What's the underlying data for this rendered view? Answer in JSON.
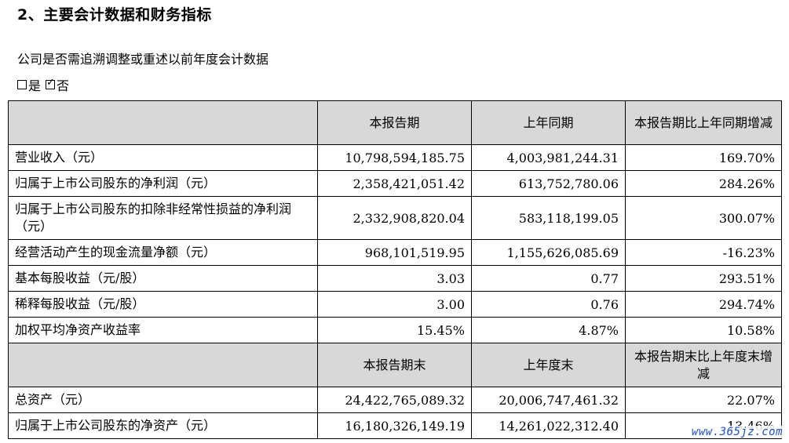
{
  "heading": "2、主要会计数据和财务指标",
  "question": "公司是否需追溯调整或重述以前年度会计数据",
  "options": {
    "yes": "是",
    "no": "否",
    "selected": "否"
  },
  "table": {
    "header1": [
      "本报告期",
      "上年同期",
      "本报告期比上年同期增减"
    ],
    "rows1": [
      {
        "label": "营业收入（元）",
        "current": "10,798,594,185.75",
        "previous": "4,003,981,244.31",
        "change": "169.70%"
      },
      {
        "label": "归属于上市公司股东的净利润（元）",
        "current": "2,358,421,051.42",
        "previous": "613,752,780.06",
        "change": "284.26%"
      },
      {
        "label": "归属于上市公司股东的扣除非经常性损益的净利润（元）",
        "current": "2,332,908,820.04",
        "previous": "583,118,199.05",
        "change": "300.07%"
      },
      {
        "label": "经营活动产生的现金流量净额（元）",
        "current": "968,101,519.95",
        "previous": "1,155,626,085.69",
        "change": "-16.23%"
      },
      {
        "label": "基本每股收益（元/股）",
        "current": "3.03",
        "previous": "0.77",
        "change": "293.51%"
      },
      {
        "label": "稀释每股收益（元/股）",
        "current": "3.00",
        "previous": "0.76",
        "change": "294.74%"
      },
      {
        "label": "加权平均净资产收益率",
        "current": "15.45%",
        "previous": "4.87%",
        "change": "10.58%"
      }
    ],
    "header2": [
      "本报告期末",
      "上年度末",
      "本报告期末比上年度末增减"
    ],
    "rows2": [
      {
        "label": "总资产（元）",
        "current": "24,422,765,089.32",
        "previous": "20,006,747,461.32",
        "change": "22.07%"
      },
      {
        "label": "归属于上市公司股东的净资产（元）",
        "current": "16,180,326,149.19",
        "previous": "14,261,022,312.40",
        "change": "13.46%"
      }
    ]
  },
  "watermark": "www.365jz.com"
}
